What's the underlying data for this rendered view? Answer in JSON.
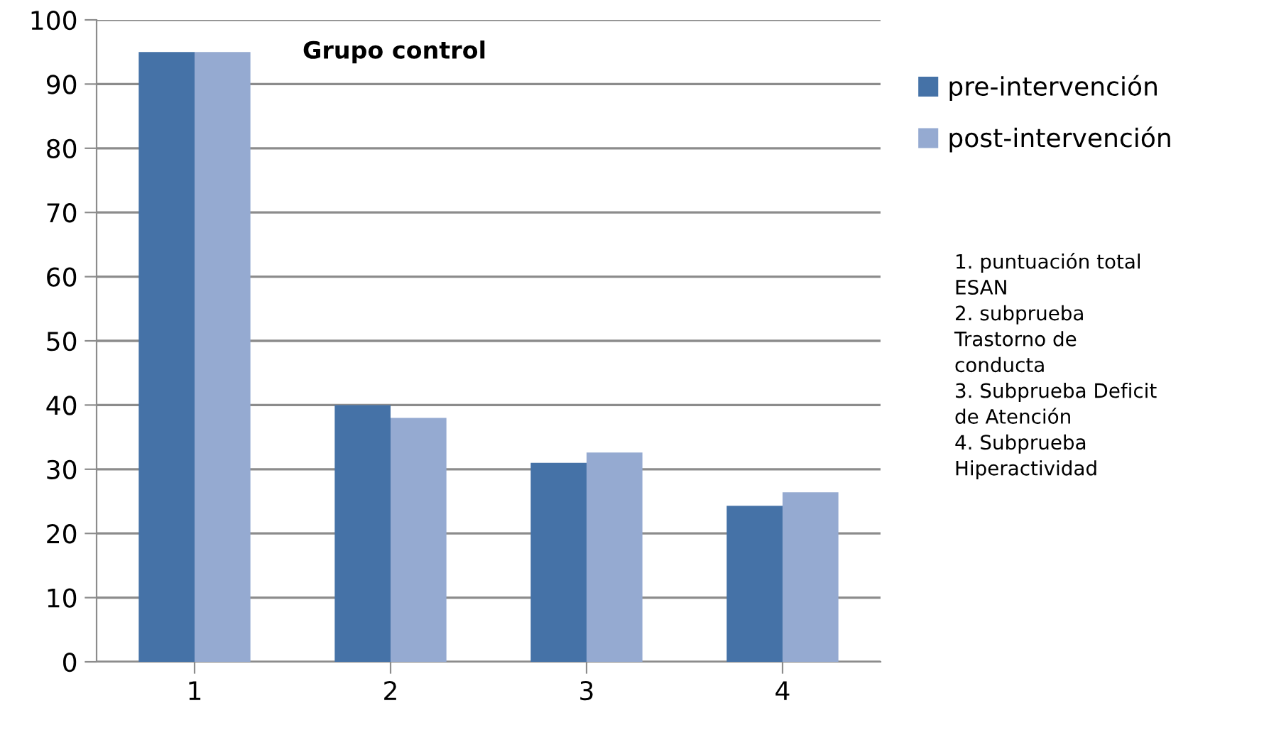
{
  "chart_data": {
    "type": "bar",
    "title": "Grupo control",
    "categories": [
      "1",
      "2",
      "3",
      "4"
    ],
    "series": [
      {
        "name": "pre-intervención",
        "color": "#4572a7",
        "values": [
          95,
          40,
          31,
          24.3
        ]
      },
      {
        "name": "post-intervención",
        "color": "#95aad1",
        "values": [
          95,
          38,
          32.6,
          26.4
        ]
      }
    ],
    "ylim": [
      0,
      100
    ],
    "yticks": [
      0,
      10,
      20,
      30,
      40,
      50,
      60,
      70,
      80,
      90,
      100
    ],
    "grid": "y",
    "legend": "right",
    "annotations": [
      "1. puntuación total\nESAN\n2. subprueba\nTrastorno de\nconducta\n3. Subprueba Deficit\nde Atención\n4. Subprueba\nHiperactividad"
    ]
  }
}
